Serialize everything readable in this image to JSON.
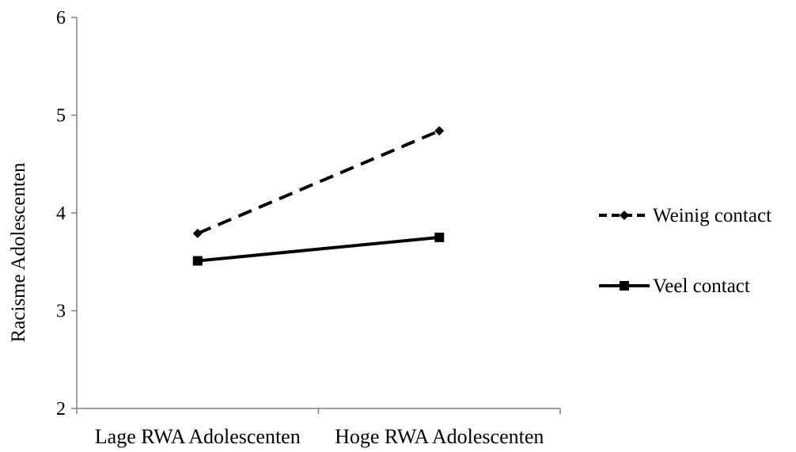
{
  "chart_data": {
    "type": "line",
    "title": "",
    "xlabel": "",
    "ylabel": "Racisme Adolescenten",
    "categories": [
      "Lage RWA Adolescenten",
      "Hoge RWA Adolescenten"
    ],
    "ylim": [
      2,
      6
    ],
    "yticks": [
      2,
      3,
      4,
      5,
      6
    ],
    "grid": false,
    "legend_position": "right",
    "series": [
      {
        "name": "Weinig contact",
        "values": [
          3.79,
          4.84
        ],
        "line_style": "dashed",
        "marker": "diamond",
        "color": "#000000"
      },
      {
        "name": "Veel contact",
        "values": [
          3.51,
          3.75
        ],
        "line_style": "solid",
        "marker": "square",
        "color": "#000000"
      }
    ]
  }
}
